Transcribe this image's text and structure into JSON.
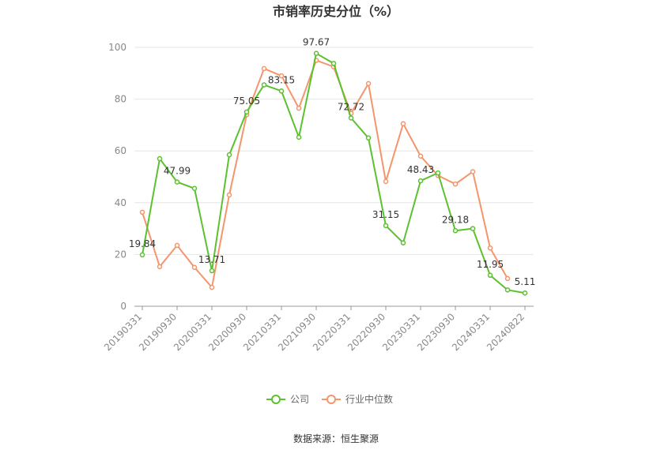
{
  "chart_data": {
    "type": "line",
    "title": "市销率历史分位（%）",
    "categories": [
      "20190331",
      null,
      "20190930",
      null,
      "20200331",
      null,
      "20200930",
      null,
      "20210331",
      null,
      "20210930",
      null,
      "20220331",
      null,
      "20220930",
      null,
      "20230331",
      null,
      "20230930",
      null,
      "20240331",
      null,
      "20240822"
    ],
    "series": [
      {
        "name": "公司",
        "color": "#5cc12f",
        "values": [
          19.84,
          57,
          47.99,
          45.5,
          13.71,
          58.5,
          75.05,
          85.5,
          83.15,
          65.3,
          97.67,
          93.8,
          72.72,
          65,
          31.15,
          24.5,
          48.43,
          51.5,
          29.18,
          30,
          11.95,
          6.3,
          5.11
        ],
        "value_labels": [
          "19.84",
          null,
          "47.99",
          null,
          "13.71",
          null,
          "75.05",
          null,
          "83.15",
          null,
          "97.67",
          null,
          "72.72",
          null,
          "31.15",
          null,
          "48.43",
          null,
          "29.18",
          null,
          "11.95",
          null,
          "5.11"
        ]
      },
      {
        "name": "行业中位数",
        "color": "#f4956b",
        "values": [
          36.3,
          15.3,
          23.5,
          15,
          7.3,
          43,
          74,
          91.8,
          89,
          76.5,
          95,
          92.5,
          74.5,
          86,
          48.2,
          70.5,
          58,
          50.5,
          47.2,
          52,
          22.5,
          10.7,
          null
        ]
      }
    ],
    "ylim": [
      0,
      100
    ],
    "yticks": [
      0,
      20,
      40,
      60,
      80,
      100
    ],
    "grid": true,
    "legend": "bottom",
    "source": "数据来源：恒生聚源"
  }
}
